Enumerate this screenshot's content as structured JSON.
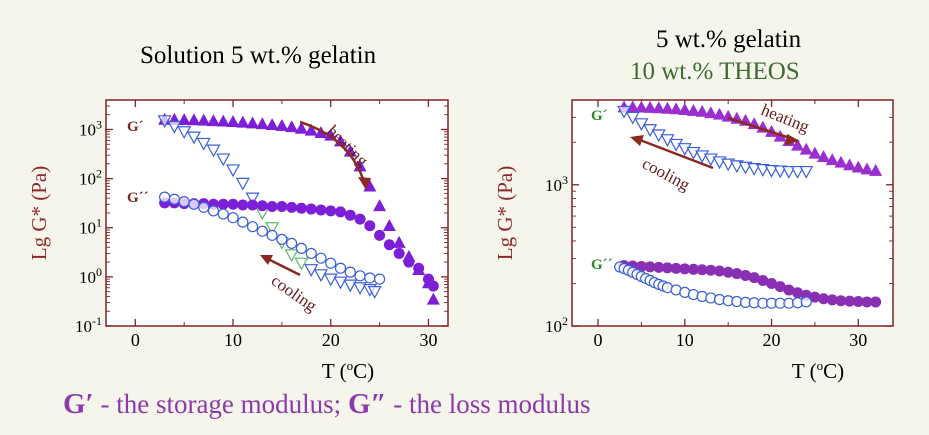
{
  "footnote": {
    "gp_symbol": "G′",
    "gp_text": " - the storage modulus; ",
    "gpp_symbol": "G″",
    "gpp_text": " - the loss modulus"
  },
  "colors": {
    "axis": "#7d2424",
    "ylabel": "#8b2a2a",
    "heating_filled": "#7d1fd8",
    "cooling_open": "#3a5fd8",
    "cooling_green_edge": "#5dbb63",
    "left_gp_label": "#7d2424",
    "right_g_label": "#2a8a2a",
    "arrow_heat": "#8b2a20",
    "arrow_cool": "#8b2a20",
    "right_gp_fill": "#9a2fd0",
    "right_gpp_fill": "#8a2fb4"
  },
  "chart_data": [
    {
      "type": "scatter",
      "title": "Solution 5 wt.% gelatin",
      "xlabel": "T   (°C)",
      "ylabel": "Lg G*   (Pa)",
      "xlim": [
        -3,
        32
      ],
      "ylim_log10": [
        -1,
        3.6
      ],
      "yscale": "log",
      "xticks": [
        0,
        10,
        20,
        30
      ],
      "yticks": [
        "10⁻¹",
        "10⁰",
        "10¹",
        "10²",
        "10³"
      ],
      "labels": {
        "gprime": "G´",
        "gdprime": "G´´"
      },
      "annotations": [
        "heating",
        "cooling"
      ],
      "series": [
        {
          "name": "G´",
          "mode": "heating",
          "marker": "filled-triangle",
          "x": [
            3,
            4,
            5,
            6,
            7,
            8,
            9,
            10,
            11,
            12,
            13,
            14,
            15,
            16,
            17,
            18,
            19,
            20,
            21,
            22,
            23,
            24,
            25,
            26,
            27,
            28,
            29,
            30,
            30.5
          ],
          "y": [
            1600,
            1600,
            1580,
            1560,
            1540,
            1500,
            1470,
            1440,
            1400,
            1350,
            1300,
            1250,
            1200,
            1130,
            1050,
            960,
            860,
            760,
            580,
            360,
            180,
            70,
            28,
            11,
            5,
            2.6,
            1.4,
            0.75,
            0.35
          ]
        },
        {
          "name": "G´",
          "mode": "cooling",
          "marker": "open-inverted-triangle",
          "x": [
            3,
            4,
            5,
            6,
            7,
            8,
            9,
            10,
            11,
            12,
            13,
            14,
            15,
            16,
            17,
            18,
            19,
            20,
            21,
            22,
            23,
            24,
            24.5
          ],
          "y": [
            1500,
            1150,
            900,
            700,
            520,
            380,
            250,
            150,
            80,
            40,
            20,
            10,
            5,
            2.8,
            1.9,
            1.4,
            1.1,
            0.9,
            0.78,
            0.68,
            0.6,
            0.55,
            0.5
          ]
        },
        {
          "name": "G´´",
          "mode": "heating",
          "marker": "filled-circle",
          "x": [
            3,
            4,
            5,
            6,
            7,
            8,
            9,
            10,
            11,
            12,
            13,
            14,
            15,
            16,
            17,
            18,
            19,
            20,
            21,
            22,
            23,
            24,
            25,
            26,
            27,
            28,
            29,
            30,
            30.5
          ],
          "y": [
            32,
            32,
            31,
            31,
            31,
            30,
            30,
            30,
            29,
            29,
            28,
            27,
            27,
            26,
            25,
            24,
            23,
            22,
            21,
            18,
            15,
            11,
            7,
            4.5,
            3,
            2,
            1.5,
            0.9,
            0.65
          ]
        },
        {
          "name": "G´´",
          "mode": "cooling",
          "marker": "open-circle",
          "x": [
            3,
            4,
            5,
            6,
            7,
            8,
            9,
            10,
            11,
            12,
            13,
            14,
            15,
            16,
            17,
            18,
            19,
            20,
            21,
            22,
            23,
            24,
            25
          ],
          "y": [
            42,
            38,
            34,
            30,
            26,
            22,
            19,
            16,
            13,
            10.5,
            8.5,
            7,
            5.8,
            4.8,
            3.8,
            3,
            2.4,
            1.9,
            1.5,
            1.25,
            1.05,
            0.95,
            0.9
          ]
        }
      ]
    },
    {
      "type": "scatter",
      "title": "5 wt.% gelatin",
      "subtitle": "10 wt.% THEOS",
      "xlabel": "T   (°C)",
      "ylabel": "Lg G*   (Pa)",
      "xlim": [
        -3,
        34
      ],
      "ylim_log10": [
        2,
        3.6
      ],
      "yscale": "log",
      "xticks": [
        0,
        10,
        20,
        30
      ],
      "yticks": [
        "10²",
        "10³"
      ],
      "labels": {
        "gprime": "G´",
        "gdprime": "G´´"
      },
      "annotations": [
        "heating",
        "cooling"
      ],
      "series": [
        {
          "name": "G´",
          "mode": "heating",
          "marker": "filled-triangle",
          "x": [
            3,
            4,
            5,
            6,
            7,
            8,
            9,
            10,
            11,
            12,
            13,
            14,
            15,
            16,
            17,
            18,
            19,
            20,
            21,
            22,
            23,
            24,
            25,
            26,
            27,
            28,
            29,
            30,
            31,
            32
          ],
          "y": [
            3550,
            3550,
            3540,
            3520,
            3500,
            3470,
            3440,
            3400,
            3350,
            3300,
            3230,
            3150,
            3050,
            2950,
            2850,
            2700,
            2550,
            2380,
            2200,
            2050,
            1900,
            1780,
            1670,
            1580,
            1500,
            1440,
            1380,
            1330,
            1290,
            1260
          ]
        },
        {
          "name": "G´",
          "mode": "cooling",
          "marker": "open-inverted-triangle",
          "x": [
            3,
            4,
            5,
            6,
            7,
            8,
            9,
            10,
            11,
            12,
            13,
            14,
            15,
            16,
            17,
            18,
            19,
            20,
            21,
            22,
            23,
            24
          ],
          "y": [
            3300,
            3000,
            2700,
            2450,
            2250,
            2080,
            1930,
            1800,
            1690,
            1600,
            1520,
            1450,
            1400,
            1360,
            1330,
            1300,
            1280,
            1260,
            1250,
            1240,
            1240,
            1240
          ]
        },
        {
          "name": "G´´",
          "mode": "heating",
          "marker": "filled-circle",
          "x": [
            3,
            4,
            5,
            6,
            7,
            8,
            9,
            10,
            11,
            12,
            13,
            14,
            15,
            16,
            17,
            18,
            19,
            20,
            21,
            22,
            23,
            24,
            25,
            26,
            27,
            28,
            29,
            30,
            31,
            32
          ],
          "y": [
            268,
            266,
            264,
            262,
            260,
            258,
            256,
            254,
            252,
            250,
            248,
            245,
            240,
            235,
            228,
            220,
            210,
            200,
            190,
            180,
            172,
            165,
            160,
            156,
            153,
            151,
            150,
            149,
            148,
            148
          ]
        },
        {
          "name": "G´´",
          "mode": "cooling",
          "marker": "open-circle",
          "x": [
            2.5,
            3,
            3.5,
            4,
            4.5,
            5,
            5.5,
            6,
            6.5,
            7,
            7.5,
            8,
            9,
            10,
            11,
            12,
            13,
            14,
            15,
            16,
            17,
            18,
            19,
            20,
            21,
            22,
            23,
            24
          ],
          "y": [
            262,
            255,
            248,
            240,
            232,
            224,
            217,
            210,
            203,
            197,
            192,
            187,
            180,
            173,
            167,
            162,
            158,
            154,
            151,
            149,
            147,
            146,
            145,
            145,
            145,
            145,
            146,
            148
          ]
        }
      ]
    }
  ],
  "chart_text": {
    "left_title": "Solution 5 wt.% gelatin",
    "right_title_1": "5 wt.% gelatin",
    "right_title_2": "10 wt.% THEOS"
  }
}
